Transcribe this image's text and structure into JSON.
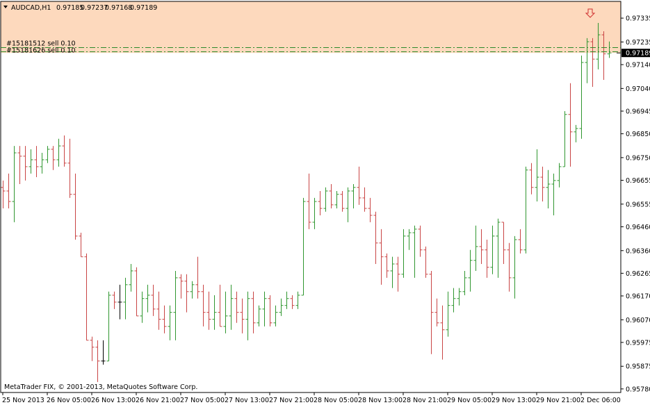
{
  "chart_data": {
    "type": "ohlc",
    "title": "AUDCAD,H1",
    "copyright": "MetaTrader FIX, © 2001-2013, MetaQuotes Software Corp.",
    "up_color": "#2f962f",
    "down_color": "#c94444",
    "zone_color": "#fdd9bd",
    "order_color": "#2a8a2a",
    "ylim": [
      0.95765,
      0.97411
    ],
    "yticks": [
      {
        "value": 0.97335,
        "label": "0.97335"
      },
      {
        "value": 0.97235,
        "label": "0.97235"
      },
      {
        "value": 0.9714,
        "label": "0.97140"
      },
      {
        "value": 0.9704,
        "label": "0.97040"
      },
      {
        "value": 0.96945,
        "label": "0.96945"
      },
      {
        "value": 0.9685,
        "label": "0.96850"
      },
      {
        "value": 0.9675,
        "label": "0.96750"
      },
      {
        "value": 0.96655,
        "label": "0.96655"
      },
      {
        "value": 0.96555,
        "label": "0.96555"
      },
      {
        "value": 0.9646,
        "label": "0.96460"
      },
      {
        "value": 0.9636,
        "label": "0.96360"
      },
      {
        "value": 0.96265,
        "label": "0.96265"
      },
      {
        "value": 0.9617,
        "label": "0.96170"
      },
      {
        "value": 0.9607,
        "label": "0.96070"
      },
      {
        "value": 0.95975,
        "label": "0.95975"
      },
      {
        "value": 0.95875,
        "label": "0.95875"
      },
      {
        "value": 0.9578,
        "label": "0.95780"
      }
    ],
    "orders": [
      {
        "label": "#15181512 sell 0.10",
        "price": 0.97213
      },
      {
        "label": "#15181626 sell 0.10",
        "price": 0.97196
      }
    ],
    "categories": [
      "25 Nov 2013",
      null,
      null,
      null,
      null,
      null,
      null,
      null,
      "26 Nov 05:00",
      null,
      null,
      null,
      null,
      null,
      null,
      null,
      "26 Nov 13:00",
      null,
      null,
      null,
      null,
      null,
      null,
      null,
      "26 Nov 21:00",
      null,
      null,
      null,
      null,
      null,
      null,
      null,
      "27 Nov 05:00",
      null,
      null,
      null,
      null,
      null,
      null,
      null,
      "27 Nov 13:00",
      null,
      null,
      null,
      null,
      null,
      null,
      null,
      "27 Nov 21:00",
      null,
      null,
      null,
      null,
      null,
      null,
      null,
      "28 Nov 05:00",
      null,
      null,
      null,
      null,
      null,
      null,
      null,
      "28 Nov 13:00",
      null,
      null,
      null,
      null,
      null,
      null,
      null,
      "28 Nov 21:00",
      null,
      null,
      null,
      null,
      null,
      null,
      null,
      "29 Nov 05:00",
      null,
      null,
      null,
      null,
      null,
      null,
      null,
      "29 Nov 13:00",
      null,
      null,
      null,
      null,
      null,
      null,
      null,
      "29 Nov 21:00",
      null,
      null,
      null,
      null,
      null,
      null,
      null,
      "2 Dec 06:00",
      null,
      null,
      null,
      null,
      null
    ],
    "open": [
      0.96625,
      0.9661,
      0.96566,
      0.9677,
      0.96756,
      0.96712,
      0.96741,
      0.96712,
      0.96741,
      0.96785,
      0.96741,
      0.96799,
      0.96727,
      0.96596,
      0.96421,
      0.96334,
      0.95984,
      0.95955,
      0.95897,
      0.95897,
      0.96173,
      0.96144,
      0.96144,
      0.96217,
      0.96275,
      0.96086,
      0.96159,
      0.96173,
      0.96115,
      0.96072,
      0.96042,
      0.96101,
      0.96246,
      0.96232,
      0.96188,
      0.96217,
      0.96188,
      0.96101,
      0.96072,
      0.96101,
      0.96042,
      0.96086,
      0.96159,
      0.96101,
      0.96072,
      0.96159,
      0.96057,
      0.96115,
      0.96159,
      0.96057,
      0.96101,
      0.9613,
      0.96159,
      0.9613,
      0.96173,
      0.96566,
      0.96479,
      0.96566,
      0.96537,
      0.9661,
      0.96552,
      0.96596,
      0.96537,
      0.9661,
      0.96625,
      0.96581,
      0.96537,
      0.96508,
      0.96392,
      0.96334,
      0.96275,
      0.96304,
      0.96261,
      0.96421,
      0.96435,
      0.9645,
      0.96363,
      0.96261,
      0.96101,
      0.96057,
      0.96028,
      0.9613,
      0.96159,
      0.96188,
      0.96246,
      0.96319,
      0.96377,
      0.96363,
      0.9629,
      0.96421,
      0.96479,
      0.96363,
      0.96246,
      0.96406,
      0.96363,
      0.96698,
      0.96625,
      0.96668,
      0.96625,
      0.96639,
      0.96654,
      0.96712,
      0.96931,
      0.96858,
      0.96872,
      0.97149,
      0.97236,
      0.97163,
      0.97265,
      0.97185
    ],
    "high": [
      0.96654,
      0.96683,
      0.96799,
      0.96799,
      0.96799,
      0.96785,
      0.96799,
      0.9677,
      0.96799,
      0.96799,
      0.96829,
      0.96843,
      0.96829,
      0.96683,
      0.96435,
      0.96348,
      0.95999,
      0.95984,
      0.95984,
      0.96188,
      0.96188,
      0.96217,
      0.96246,
      0.96304,
      0.9629,
      0.96188,
      0.96217,
      0.96217,
      0.96188,
      0.9613,
      0.9613,
      0.96275,
      0.96261,
      0.96261,
      0.96232,
      0.96334,
      0.96217,
      0.96188,
      0.96173,
      0.96217,
      0.96188,
      0.96217,
      0.96188,
      0.96159,
      0.96188,
      0.96188,
      0.9613,
      0.96188,
      0.96173,
      0.9613,
      0.96159,
      0.96188,
      0.96173,
      0.96188,
      0.96581,
      0.96683,
      0.96581,
      0.9661,
      0.96625,
      0.96639,
      0.9661,
      0.9661,
      0.96625,
      0.96639,
      0.96712,
      0.96625,
      0.96581,
      0.96523,
      0.9645,
      0.96348,
      0.96334,
      0.96334,
      0.9645,
      0.9645,
      0.96465,
      0.96465,
      0.96377,
      0.96275,
      0.96159,
      0.9613,
      0.96188,
      0.96203,
      0.96203,
      0.96275,
      0.96363,
      0.96465,
      0.9645,
      0.96406,
      0.96465,
      0.96494,
      0.96479,
      0.96392,
      0.96421,
      0.9645,
      0.96712,
      0.96727,
      0.96785,
      0.96712,
      0.96698,
      0.96683,
      0.96727,
      0.96945,
      0.97062,
      0.96887,
      0.97178,
      0.97251,
      0.97251,
      0.97315,
      0.9728,
      0.97237
    ],
    "low": [
      0.96537,
      0.96537,
      0.96479,
      0.96639,
      0.96654,
      0.96683,
      0.96668,
      0.96683,
      0.96727,
      0.96698,
      0.96712,
      0.96712,
      0.96581,
      0.96406,
      0.96334,
      0.95984,
      0.95897,
      0.95809,
      0.95882,
      0.95897,
      0.96115,
      0.96072,
      0.96072,
      0.96188,
      0.96086,
      0.96057,
      0.96101,
      0.96086,
      0.96028,
      0.96013,
      0.95984,
      0.95984,
      0.96159,
      0.96101,
      0.96159,
      0.96159,
      0.96042,
      0.96028,
      0.96028,
      0.96042,
      0.96013,
      0.96028,
      0.96057,
      0.96013,
      0.95984,
      0.96013,
      0.96042,
      0.96042,
      0.96042,
      0.96042,
      0.96086,
      0.96115,
      0.96115,
      0.96115,
      0.96173,
      0.9645,
      0.9645,
      0.96508,
      0.96523,
      0.96537,
      0.96537,
      0.96523,
      0.96479,
      0.96537,
      0.96552,
      0.96523,
      0.96479,
      0.96304,
      0.96217,
      0.96246,
      0.96203,
      0.96188,
      0.96246,
      0.96363,
      0.96246,
      0.96334,
      0.96246,
      0.95926,
      0.96042,
      0.95903,
      0.95999,
      0.96101,
      0.9613,
      0.96173,
      0.96188,
      0.96275,
      0.96304,
      0.96246,
      0.96261,
      0.96246,
      0.96304,
      0.96188,
      0.96159,
      0.96348,
      0.96348,
      0.96596,
      0.96566,
      0.96566,
      0.96537,
      0.96508,
      0.96625,
      0.96712,
      0.96712,
      0.96814,
      0.96829,
      0.97062,
      0.97047,
      0.9712,
      0.97076,
      0.97168
    ],
    "close": [
      0.9661,
      0.96566,
      0.9677,
      0.96756,
      0.96712,
      0.96741,
      0.96712,
      0.96741,
      0.96785,
      0.96741,
      0.96799,
      0.96727,
      0.96596,
      0.96421,
      0.96334,
      0.95984,
      0.95955,
      0.95897,
      0.95897,
      0.96173,
      0.96144,
      0.96144,
      0.96217,
      0.96275,
      0.96086,
      0.96159,
      0.96173,
      0.96115,
      0.96072,
      0.96042,
      0.96101,
      0.96246,
      0.96232,
      0.96188,
      0.96217,
      0.96188,
      0.96101,
      0.96072,
      0.96101,
      0.96042,
      0.96086,
      0.96159,
      0.96101,
      0.96072,
      0.96159,
      0.96057,
      0.96115,
      0.96159,
      0.96057,
      0.96101,
      0.9613,
      0.96159,
      0.9613,
      0.96173,
      0.96566,
      0.96479,
      0.96566,
      0.96537,
      0.9661,
      0.96552,
      0.96596,
      0.96537,
      0.9661,
      0.96625,
      0.96581,
      0.96537,
      0.96508,
      0.96392,
      0.96334,
      0.96275,
      0.96304,
      0.96261,
      0.96421,
      0.96435,
      0.9645,
      0.96363,
      0.96261,
      0.96101,
      0.96057,
      0.96028,
      0.9613,
      0.96159,
      0.96188,
      0.96246,
      0.96319,
      0.96377,
      0.96363,
      0.9629,
      0.96421,
      0.96479,
      0.96363,
      0.96246,
      0.96406,
      0.96363,
      0.96698,
      0.96625,
      0.96668,
      0.96625,
      0.96639,
      0.96654,
      0.96712,
      0.96931,
      0.96858,
      0.96872,
      0.97149,
      0.97236,
      0.97163,
      0.97265,
      0.97185,
      0.97189
    ]
  }
}
